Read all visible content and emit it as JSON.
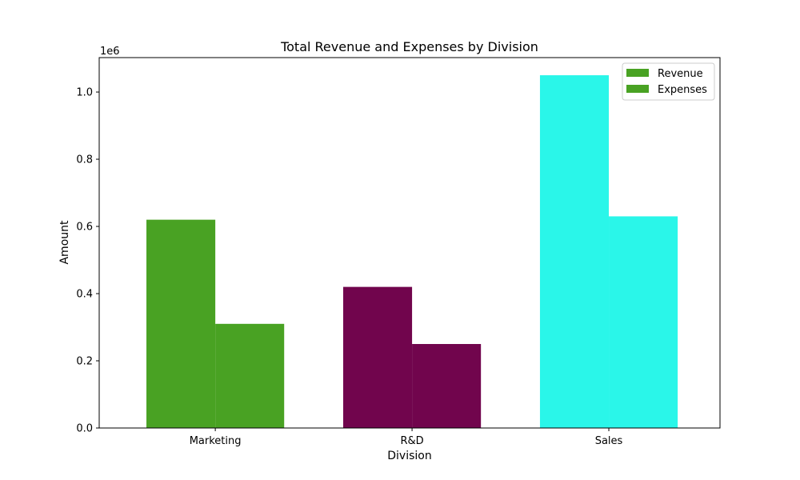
{
  "chart_data": {
    "type": "bar",
    "title": "Total Revenue and Expenses by Division",
    "xlabel": "Division",
    "ylabel": "Amount",
    "y_offset_label": "1e6",
    "categories": [
      "Marketing",
      "R&D",
      "Sales"
    ],
    "series": [
      {
        "name": "Revenue",
        "values": [
          620000,
          420000,
          1050000
        ]
      },
      {
        "name": "Expenses",
        "values": [
          310000,
          250000,
          630000
        ]
      }
    ],
    "category_colors": [
      "#49a223",
      "#71054d",
      "#2af6e9"
    ],
    "legend_color": "#49a223",
    "ylim": [
      0,
      1102500
    ],
    "y_ticks": [
      0,
      200000,
      400000,
      600000,
      800000,
      1000000
    ],
    "y_tick_labels": [
      "0.0",
      "0.2",
      "0.4",
      "0.6",
      "0.8",
      "1.0"
    ],
    "grid": false,
    "legend_position": "top-right"
  }
}
